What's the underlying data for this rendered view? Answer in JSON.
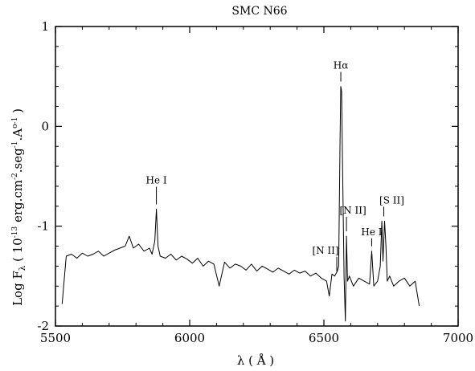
{
  "chart_data": {
    "type": "line",
    "title": "SMC N66",
    "xlabel": "λ ( Å )",
    "ylabel": "Log F_λ ( 10^-13 erg.cm^-2.seg^-1.A^o-1 )",
    "ylabel_parts": {
      "main": "Log F",
      "sub": "λ",
      "rest1": " ( 10",
      "exp1": "-13",
      "rest2": " erg.cm",
      "exp2": "-2",
      "rest3": ".seg",
      "exp3": "-1",
      "rest4": ".A",
      "exp4": "o-1",
      "rest5": " )"
    },
    "xlim": [
      5500,
      7000
    ],
    "ylim": [
      -2,
      1
    ],
    "x_ticks": [
      5500,
      6000,
      6500,
      7000
    ],
    "y_ticks": [
      -2,
      -1,
      0,
      1
    ],
    "grid": false,
    "series": [
      {
        "x": [
          5525,
          5540,
          5560,
          5580,
          5600,
          5620,
          5640,
          5660,
          5680,
          5700,
          5720,
          5740,
          5760,
          5775,
          5790,
          5810,
          5830,
          5850,
          5860,
          5870,
          5876,
          5882,
          5890,
          5910,
          5930,
          5950,
          5970,
          5990,
          6010,
          6030,
          6050,
          6070,
          6090,
          6110,
          6130,
          6150,
          6170,
          6190,
          6210,
          6230,
          6250,
          6270,
          6290,
          6310,
          6330,
          6350,
          6370,
          6390,
          6410,
          6430,
          6450,
          6470,
          6490,
          6510,
          6520,
          6530,
          6540,
          6550,
          6555,
          6560,
          6563,
          6566,
          6570,
          6575,
          6580,
          6584,
          6588,
          6595,
          6610,
          6630,
          6650,
          6670,
          6678,
          6686,
          6700,
          6710,
          6716,
          6720,
          6726,
          6731,
          6736,
          6745,
          6760,
          6780,
          6800,
          6820,
          6840,
          6855
        ],
        "y": [
          -1.78,
          -1.3,
          -1.28,
          -1.32,
          -1.27,
          -1.3,
          -1.28,
          -1.25,
          -1.3,
          -1.27,
          -1.24,
          -1.22,
          -1.2,
          -1.1,
          -1.22,
          -1.18,
          -1.25,
          -1.22,
          -1.28,
          -1.15,
          -0.83,
          -1.2,
          -1.3,
          -1.32,
          -1.28,
          -1.34,
          -1.3,
          -1.33,
          -1.37,
          -1.32,
          -1.4,
          -1.35,
          -1.38,
          -1.6,
          -1.36,
          -1.42,
          -1.38,
          -1.4,
          -1.44,
          -1.38,
          -1.45,
          -1.4,
          -1.43,
          -1.46,
          -1.42,
          -1.45,
          -1.48,
          -1.44,
          -1.47,
          -1.45,
          -1.5,
          -1.47,
          -1.52,
          -1.55,
          -1.7,
          -1.48,
          -1.5,
          -1.45,
          -1.4,
          -0.2,
          0.4,
          0.35,
          -0.5,
          -1.5,
          -1.95,
          -1.1,
          -1.55,
          -1.5,
          -1.6,
          -1.52,
          -1.55,
          -1.58,
          -1.25,
          -1.6,
          -1.55,
          -1.4,
          -0.95,
          -1.35,
          -0.95,
          -1.2,
          -1.55,
          -1.5,
          -1.6,
          -1.55,
          -1.52,
          -1.6,
          -1.55,
          -1.8
        ]
      }
    ],
    "annotations": [
      {
        "text": "He I",
        "x": 5876,
        "y": -0.83,
        "tick_len": 22,
        "label_dx": 0
      },
      {
        "text": "Hα",
        "x": 6563,
        "y": 0.4,
        "tick_len": 12,
        "label_dx": 0
      },
      {
        "text": "[N II]",
        "x": 6548,
        "y": -1.5,
        "tick_len": 18,
        "label_dx": -14
      },
      {
        "text": "[N II]",
        "x": 6584,
        "y": -1.1,
        "tick_len": 18,
        "label_dx": 8
      },
      {
        "text": "He I",
        "x": 6678,
        "y": -1.25,
        "tick_len": 10,
        "label_dx": 0
      },
      {
        "text": "[S II]",
        "x": 6723,
        "y": -0.95,
        "tick_len": 12,
        "label_dx": 10
      }
    ]
  }
}
